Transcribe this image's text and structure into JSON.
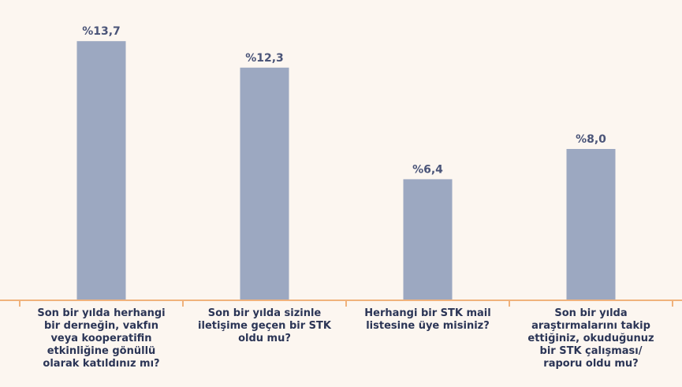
{
  "chart_data": {
    "type": "bar",
    "categories": [
      "Son bir yılda herhangi bir derneğin, vakfın veya kooperatifin etkinliğine gönüllü olarak katıldınız mı?",
      "Son bir yılda sizinle iletişime geçen bir STK oldu mu?",
      "Herhangi bir STK mail listesine üye misiniz?",
      "Son bir yılda araştırmalarını takip ettiğiniz, okuduğunuz bir STK çalışması/ raporu oldu mu?"
    ],
    "values": [
      13.7,
      12.3,
      6.4,
      8.0
    ],
    "value_labels": [
      "%13,7",
      "%12,3",
      "%6,4",
      "%8,0"
    ],
    "color": "#9ca8c1",
    "ylim": [
      0,
      16
    ]
  }
}
